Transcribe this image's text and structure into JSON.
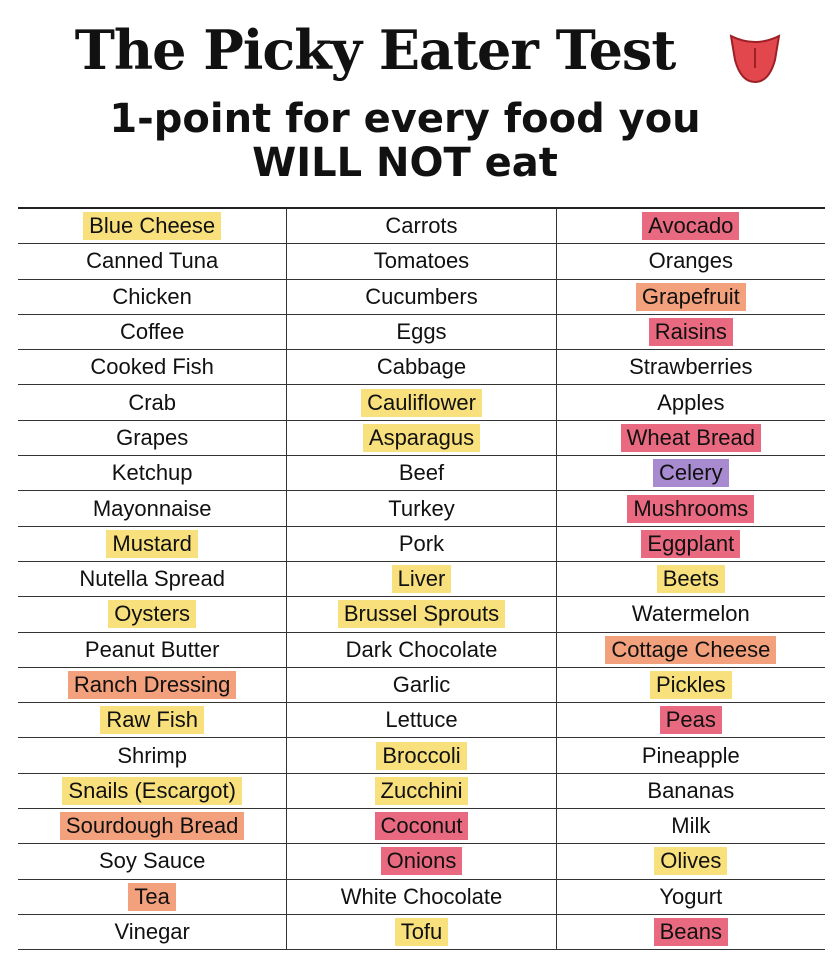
{
  "header": {
    "title": "The Picky Eater Test",
    "subtitle": [
      "1-point for every food you",
      "WILL NOT eat"
    ]
  },
  "table": {
    "rows": [
      [
        {
          "text": "Blue Cheese",
          "highlight": "#f8e17c"
        },
        {
          "text": "Carrots"
        },
        {
          "text": "Avocado",
          "highlight": "#e96a80"
        }
      ],
      [
        {
          "text": "Canned Tuna"
        },
        {
          "text": "Tomatoes"
        },
        {
          "text": "Oranges"
        }
      ],
      [
        {
          "text": "Chicken"
        },
        {
          "text": "Cucumbers"
        },
        {
          "text": "Grapefruit",
          "highlight": "#f3a07c"
        }
      ],
      [
        {
          "text": "Coffee"
        },
        {
          "text": "Eggs"
        },
        {
          "text": "Raisins",
          "highlight": "#e96a80"
        }
      ],
      [
        {
          "text": "Cooked Fish"
        },
        {
          "text": "Cabbage"
        },
        {
          "text": "Strawberries"
        }
      ],
      [
        {
          "text": "Crab"
        },
        {
          "text": "Cauliflower",
          "highlight": "#f8e17c"
        },
        {
          "text": "Apples"
        }
      ],
      [
        {
          "text": "Grapes"
        },
        {
          "text": "Asparagus",
          "highlight": "#f8e17c"
        },
        {
          "text": "Wheat Bread",
          "highlight": "#e96a80"
        }
      ],
      [
        {
          "text": "Ketchup"
        },
        {
          "text": "Beef"
        },
        {
          "text": "Celery",
          "highlight": "#a88ad0"
        }
      ],
      [
        {
          "text": "Mayonnaise"
        },
        {
          "text": "Turkey"
        },
        {
          "text": "Mushrooms",
          "highlight": "#e96a80"
        }
      ],
      [
        {
          "text": "Mustard",
          "highlight": "#f8e17c"
        },
        {
          "text": "Pork"
        },
        {
          "text": "Eggplant",
          "highlight": "#e96a80"
        }
      ],
      [
        {
          "text": "Nutella Spread"
        },
        {
          "text": "Liver",
          "highlight": "#f8e17c"
        },
        {
          "text": "Beets",
          "highlight": "#f8e17c"
        }
      ],
      [
        {
          "text": "Oysters",
          "highlight": "#f8e17c"
        },
        {
          "text": "Brussel Sprouts",
          "highlight": "#f8e17c"
        },
        {
          "text": "Watermelon"
        }
      ],
      [
        {
          "text": "Peanut Butter"
        },
        {
          "text": "Dark Chocolate"
        },
        {
          "text": "Cottage Cheese",
          "highlight": "#f3a07c"
        }
      ],
      [
        {
          "text": "Ranch Dressing",
          "highlight": "#f3a07c"
        },
        {
          "text": "Garlic"
        },
        {
          "text": "Pickles",
          "highlight": "#f8e17c"
        }
      ],
      [
        {
          "text": "Raw Fish",
          "highlight": "#f8e17c"
        },
        {
          "text": "Lettuce"
        },
        {
          "text": "Peas",
          "highlight": "#e96a80"
        }
      ],
      [
        {
          "text": "Shrimp"
        },
        {
          "text": "Broccoli",
          "highlight": "#f8e17c"
        },
        {
          "text": "Pineapple"
        }
      ],
      [
        {
          "text": "Snails (Escargot)",
          "highlight": "#f8e17c"
        },
        {
          "text": "Zucchini",
          "highlight": "#f8e17c"
        },
        {
          "text": "Bananas"
        }
      ],
      [
        {
          "text": "Sourdough Bread",
          "highlight": "#f3a07c"
        },
        {
          "text": "Coconut",
          "highlight": "#e96a80"
        },
        {
          "text": "Milk"
        }
      ],
      [
        {
          "text": "Soy Sauce"
        },
        {
          "text": "Onions",
          "highlight": "#e96a80"
        },
        {
          "text": "Olives",
          "highlight": "#f8e17c"
        }
      ],
      [
        {
          "text": "Tea",
          "highlight": "#f3a07c"
        },
        {
          "text": "White Chocolate"
        },
        {
          "text": "Yogurt"
        }
      ],
      [
        {
          "text": "Vinegar"
        },
        {
          "text": "Tofu",
          "highlight": "#f8e17c"
        },
        {
          "text": "Beans",
          "highlight": "#e96a80"
        }
      ]
    ]
  }
}
